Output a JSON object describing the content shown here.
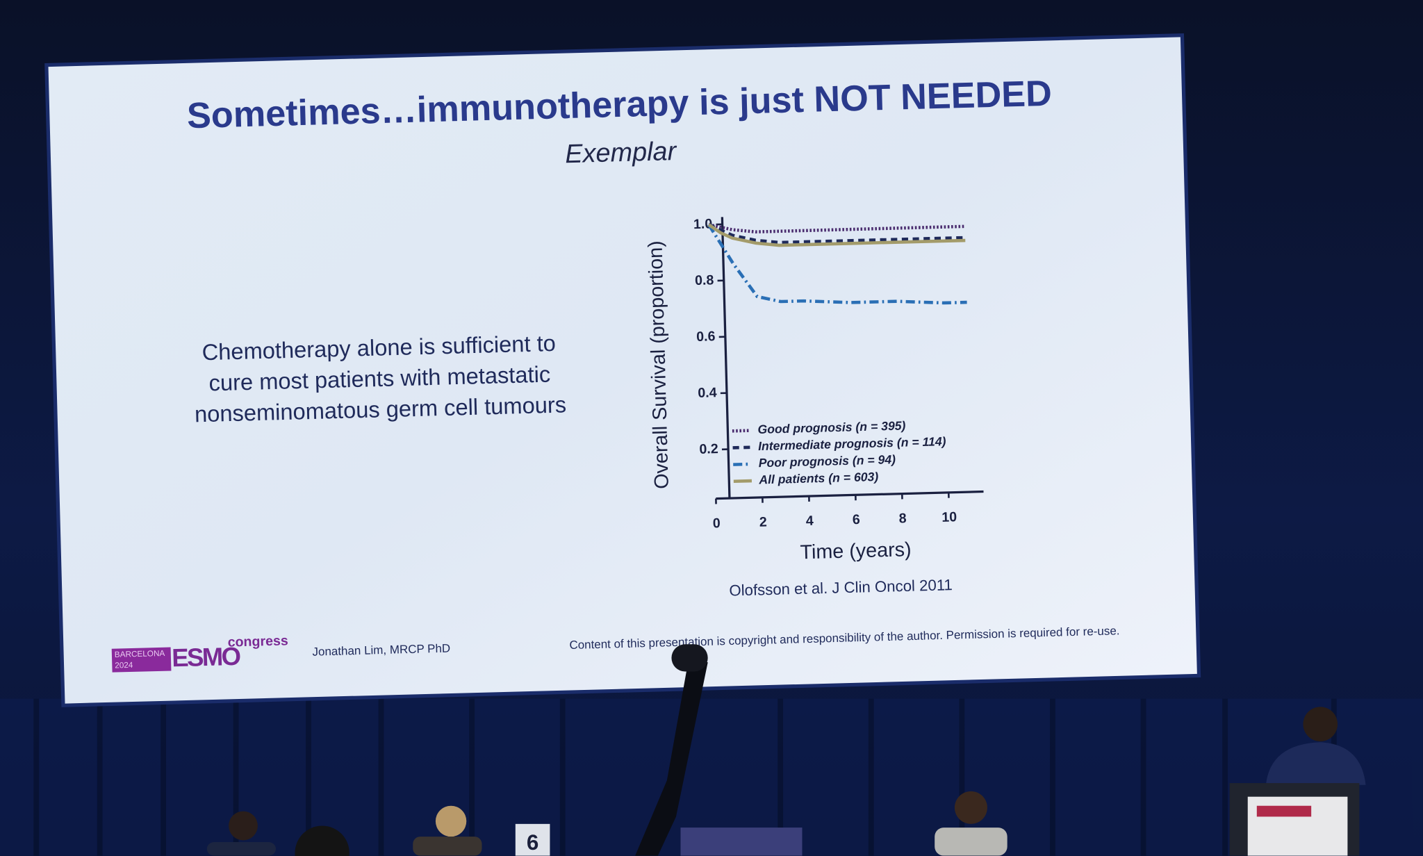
{
  "slide": {
    "title": "Sometimes…immunotherapy is just NOT NEEDED",
    "subtitle": "Exemplar",
    "body": [
      "Chemotherapy alone is sufficient to",
      "cure most patients with metastatic",
      "nonseminomatous germ cell tumours"
    ],
    "citation": "Olofsson et al. J Clin Oncol 2011",
    "footer": {
      "logo_city": "BARCELONA",
      "logo_year": "2024",
      "logo_brand": "ESMO",
      "logo_event": "congress",
      "author": "Jonathan Lim, MRCP PhD",
      "copyright": "Content of this presentation is copyright and responsibility of the author. Permission is required for re-use."
    }
  },
  "stage": {
    "placard": "6"
  },
  "chart_data": {
    "type": "line",
    "x_label": "Time (years)",
    "y_label": "Overall Survival (proportion)",
    "x": [
      0,
      0.5,
      1,
      1.5,
      2,
      3,
      4,
      6,
      8,
      10,
      11
    ],
    "series": [
      {
        "name": "Good prognosis (n = 395)",
        "color": "#4a2c6e",
        "line_style": "dotted",
        "values": [
          1,
          0.99,
          0.98,
          0.975,
          0.97,
          0.97,
          0.97,
          0.97,
          0.97,
          0.97,
          0.97
        ]
      },
      {
        "name": "Intermediate prognosis (n = 114)",
        "color": "#1f2a5a",
        "line_style": "dashed",
        "values": [
          1,
          0.98,
          0.96,
          0.95,
          0.94,
          0.93,
          0.93,
          0.93,
          0.93,
          0.93,
          0.93
        ]
      },
      {
        "name": "Poor prognosis (n = 94)",
        "color": "#2a6fb5",
        "line_style": "dashdot",
        "values": [
          1,
          0.93,
          0.86,
          0.8,
          0.74,
          0.72,
          0.72,
          0.71,
          0.71,
          0.7,
          0.7
        ]
      },
      {
        "name": "All patients (n = 603)",
        "color": "#a39b6a",
        "line_style": "solid",
        "values": [
          1,
          0.97,
          0.95,
          0.94,
          0.93,
          0.92,
          0.92,
          0.92,
          0.92,
          0.92,
          0.92
        ]
      }
    ],
    "xlim": [
      0,
      11.5
    ],
    "ylim": [
      0,
      1
    ],
    "xticks": [
      0,
      2,
      4,
      6,
      8,
      10
    ],
    "yticks": [
      0.2,
      0.4,
      0.6,
      0.8,
      {
        "value": 1,
        "label": "1.0"
      }
    ],
    "grid": false,
    "legend": "lower-left"
  }
}
